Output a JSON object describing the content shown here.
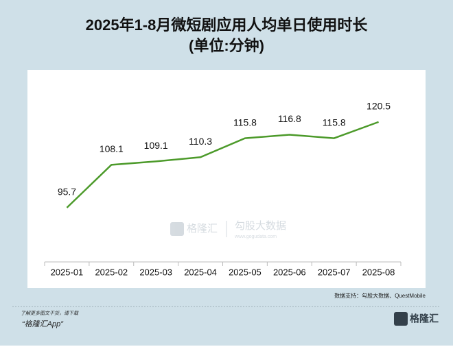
{
  "chart_data": {
    "type": "line",
    "title": "2025年1-8月微短剧应用人均单日使用时长",
    "subtitle": "(单位:分钟)",
    "categories": [
      "2025-01",
      "2025-02",
      "2025-03",
      "2025-04",
      "2025-05",
      "2025-06",
      "2025-07",
      "2025-08"
    ],
    "values": [
      95.7,
      108.1,
      109.1,
      110.3,
      115.8,
      116.8,
      115.8,
      120.5
    ],
    "color": "#4c9a2a",
    "ylim": [
      80,
      130
    ],
    "source": "数据支持：勾股大数据、QuestMobile"
  },
  "watermark": {
    "brand": "格隆汇",
    "partner": "勾股大数据",
    "url": "www.gogudata.com"
  },
  "footer": {
    "note": "了解更多图文干货，请下载",
    "app": "“格隆汇App”",
    "logo": "格隆汇"
  }
}
